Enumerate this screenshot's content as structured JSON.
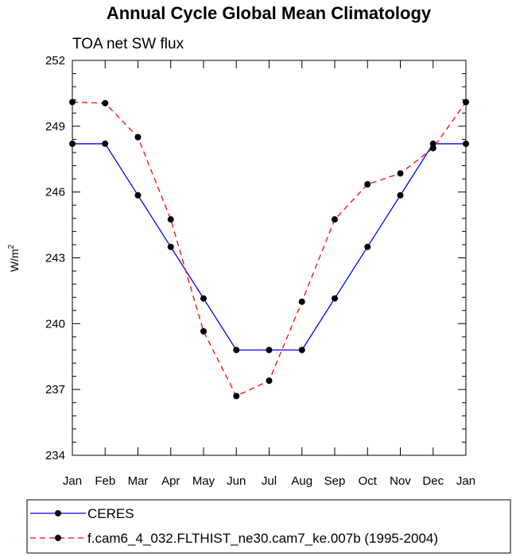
{
  "chart_data": {
    "type": "line",
    "title": "Annual Cycle Global Mean Climatology",
    "subtitle": "TOA net SW flux",
    "ylabel": "W/m",
    "ylabel_superscript": "2",
    "xlabel": "",
    "categories": [
      "Jan",
      "Feb",
      "Mar",
      "Apr",
      "May",
      "Jun",
      "Jul",
      "Aug",
      "Sep",
      "Oct",
      "Nov",
      "Dec",
      "Jan"
    ],
    "ylim": [
      234,
      252
    ],
    "yticks": [
      234,
      237,
      240,
      243,
      246,
      249,
      252
    ],
    "grid": false,
    "legend_position": "bottom",
    "series": [
      {
        "name": "CERES",
        "color": "#0000ff",
        "dash": "solid",
        "marker": "circle",
        "values": [
          248.2,
          248.2,
          245.85,
          243.5,
          241.15,
          238.8,
          238.8,
          238.8,
          241.15,
          243.5,
          245.85,
          248.2,
          248.2
        ]
      },
      {
        "name": "f.cam6_4_032.FLTHIST_ne30.cam7_ke.007b (1995-2004)",
        "color": "#ff0000",
        "dash": "dashed",
        "marker": "circle",
        "values": [
          250.1,
          250.05,
          248.5,
          244.75,
          239.65,
          236.7,
          237.4,
          241.0,
          244.75,
          246.35,
          246.85,
          248.0,
          250.1
        ]
      }
    ]
  }
}
